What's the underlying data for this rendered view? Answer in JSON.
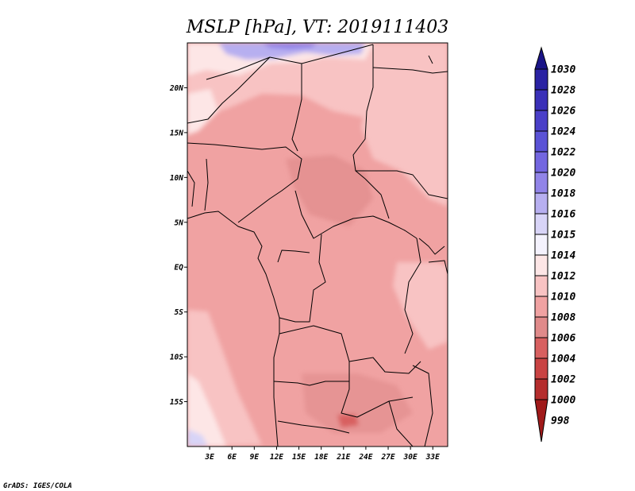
{
  "chart_data": {
    "type": "heatmap",
    "title": "MSLP [hPa], VT: 2019111403",
    "x_ticks": [
      "3E",
      "6E",
      "9E",
      "12E",
      "15E",
      "18E",
      "21E",
      "24E",
      "27E",
      "30E",
      "33E"
    ],
    "x_tick_values": [
      3,
      6,
      9,
      12,
      15,
      18,
      21,
      24,
      27,
      30,
      33
    ],
    "y_ticks": [
      "20N",
      "15N",
      "10N",
      "5N",
      "EQ",
      "5S",
      "10S",
      "15S"
    ],
    "y_tick_values": [
      20,
      15,
      10,
      5,
      0,
      -5,
      -10,
      -15
    ],
    "xlim": [
      0,
      35
    ],
    "ylim": [
      -20,
      25
    ],
    "colorbar": {
      "labels": [
        "1030",
        "1028",
        "1026",
        "1024",
        "1022",
        "1020",
        "1018",
        "1016",
        "1015",
        "1014",
        "1012",
        "1010",
        "1008",
        "1006",
        "1004",
        "1002",
        "1000",
        "998"
      ],
      "colors": [
        "#1a1487",
        "#2a22a3",
        "#3a30b8",
        "#4a3fc8",
        "#5a52d6",
        "#7366e0",
        "#9184e8",
        "#b7aff0",
        "#d8d4f7",
        "#f4f2fd",
        "#fde6e6",
        "#f8c3c3",
        "#f0a2a2",
        "#e08a8a",
        "#d86060",
        "#c94343",
        "#b52d2d",
        "#a01a1a"
      ]
    },
    "credit": "GrADS: IGES/COLA"
  }
}
